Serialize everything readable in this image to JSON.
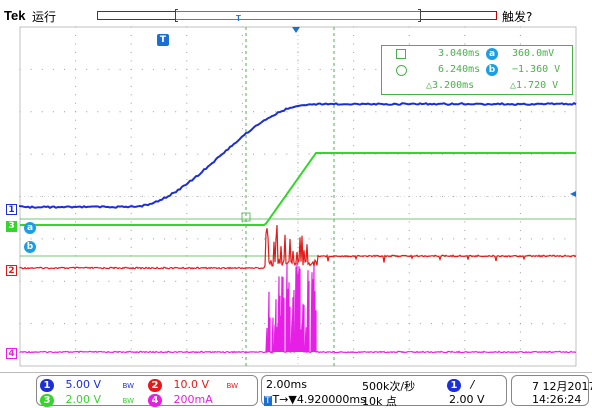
{
  "header": {
    "brand": "Tek",
    "run_state": "运行",
    "trigger_state": "触发?"
  },
  "colors": {
    "ch1": "#1b2fd6",
    "ch2": "#e31a1a",
    "ch3": "#33d629",
    "ch4": "#e61ee6",
    "cursor": "#4ab04a",
    "badge": "#1a9fe6"
  },
  "markers": {
    "trigger_pos": "T",
    "ch1": "1",
    "ch2": "2",
    "ch3": "3",
    "ch4": "4",
    "cursor_a": "a",
    "cursor_b": "b"
  },
  "cursor_readout": {
    "a_time": "3.040ms",
    "a_label": "a",
    "a_value": "360.0mV",
    "b_time": "6.240ms",
    "b_label": "b",
    "b_value": "−1.360 V",
    "delta_time": "△3.200ms",
    "delta_value": "△1.720 V"
  },
  "status_bar": {
    "ch1_num": "1",
    "ch1_scale": "5.00 V",
    "ch1_bw": "BW",
    "ch2_num": "2",
    "ch2_scale": "10.0 V",
    "ch2_bw": "BW",
    "ch3_num": "3",
    "ch3_scale": "2.00 V",
    "ch3_bw": "BW",
    "ch4_num": "4",
    "ch4_scale": "200mA",
    "timebase": "2.00ms",
    "sample_rate": "500k次/秒",
    "trigger_offset": "T→▼4.920000ms",
    "record_length": "10k 点",
    "trig_ch": "1",
    "trig_slope": "/",
    "trig_level": "2.00 V",
    "date": "7 12月2017",
    "time": "14:26:24"
  }
}
